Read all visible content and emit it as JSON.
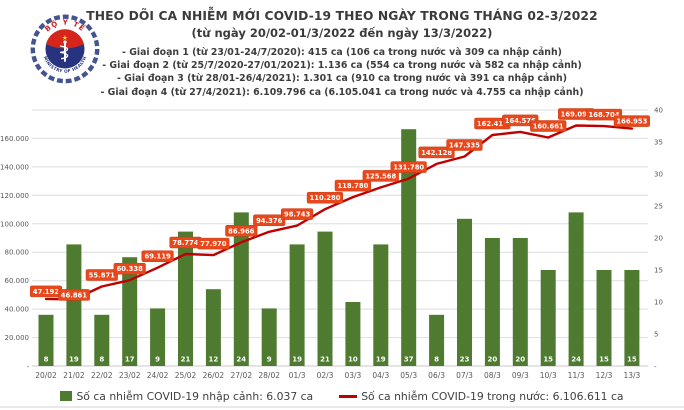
{
  "logo": {
    "top_text": "BỘ Y TẾ",
    "bottom_text": "MINISTRY OF HEALTH",
    "colors": {
      "ring": "#44548f",
      "disc": "#27337f",
      "band": "#d6261c",
      "star": "#ffd21e",
      "staff": "#ffffff"
    }
  },
  "header": {
    "title": "THEO DÕI CA NHIỄM MỚI COVID-19 THEO NGÀY TRONG THÁNG 02-3/2022",
    "subtitle": "(từ ngày 20/02-01/3/2022 đến ngày 13/3/2022)",
    "phases": [
      "- Giai đoạn 1 (từ 23/01-24/7/2020): 415 ca (106 ca trong nước và 309 ca nhập cảnh)",
      "- Giai đoạn 2 (từ 25/7/2020-27/01/2021): 1.136 ca (554 ca trong nước và 582 ca nhập cảnh)",
      "- Giai đoạn 3 (từ 28/01-26/4/2021): 1.301 ca (910 ca trong nước và 391 ca nhập cảnh)",
      "- Giai đoạn 4 (từ 27/4/2021): 6.109.796 ca (6.105.041 ca trong nước và 4.755 ca nhập cảnh)"
    ]
  },
  "chart_data": {
    "type": "bar+line",
    "categories": [
      "20/02",
      "21/02",
      "22/02",
      "23/02",
      "24/02",
      "25/02",
      "26/02",
      "27/02",
      "28/02",
      "01/3",
      "02/3",
      "03/3",
      "04/3",
      "05/3",
      "06/3",
      "07/3",
      "08/3",
      "09/3",
      "10/3",
      "11/3",
      "12/3",
      "13/3"
    ],
    "series": [
      {
        "name": "Số ca nhiễm COVID-19 nhập cảnh",
        "type": "bar",
        "axis": "right",
        "color": "#4f7b31",
        "values": [
          8,
          19,
          8,
          17,
          9,
          21,
          12,
          24,
          9,
          19,
          21,
          10,
          19,
          37,
          8,
          23,
          20,
          20,
          15,
          24,
          15,
          15
        ]
      },
      {
        "name": "Số ca nhiễm COVID-19 trong nước",
        "type": "line",
        "axis": "left",
        "color": "#c00000",
        "label_bg": "#e8481c",
        "label_border": "#c53a12",
        "values": [
          47192,
          46861,
          55871,
          60338,
          69119,
          78774,
          77970,
          86966,
          94376,
          98743,
          110280,
          118780,
          125568,
          131780,
          142128,
          147335,
          162415,
          164576,
          160661,
          169090,
          168704,
          166953
        ]
      }
    ],
    "left_axis": {
      "min": 0,
      "max": 180000,
      "step": 20000,
      "labeled_up_to": 160000,
      "zero_label": "-"
    },
    "right_axis": {
      "min": 0,
      "max": 40,
      "step": 5,
      "zero_label": "-"
    },
    "grid": true,
    "legend_position": "bottom",
    "colors": {
      "grid": "#dedede",
      "axis_line": "#c9c9c9",
      "axis_text": "#595959",
      "value_text": "#ffffff"
    }
  },
  "legend": {
    "items": [
      {
        "swatch": "bar",
        "color": "#4f7b31",
        "label": "Số ca nhiễm COVID-19 nhập cảnh: 6.037 ca"
      },
      {
        "swatch": "line",
        "color": "#c00000",
        "label": "Số ca nhiễm COVID-19 trong nước: 6.106.611 ca"
      }
    ]
  }
}
